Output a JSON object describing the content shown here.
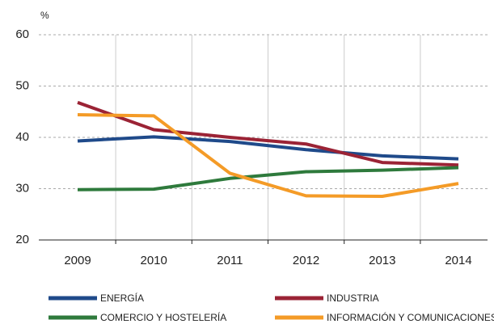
{
  "chart_data": {
    "type": "line",
    "y_label": "%",
    "categories": [
      "2009",
      "2010",
      "2011",
      "2012",
      "2013",
      "2014"
    ],
    "ylim": [
      20,
      60
    ],
    "yticks": [
      20,
      30,
      40,
      50,
      60
    ],
    "grid": true,
    "series": [
      {
        "name": "ENERGÍA",
        "color": "#1f4a8a",
        "values": [
          39.3,
          40.1,
          39.2,
          37.6,
          36.4,
          35.8
        ]
      },
      {
        "name": "INDUSTRIA",
        "color": "#9b2335",
        "values": [
          46.8,
          41.5,
          40.0,
          38.7,
          35.1,
          34.6
        ]
      },
      {
        "name": "COMERCIO Y HOSTELERÍA",
        "color": "#2e7a3c",
        "values": [
          29.8,
          29.9,
          32.0,
          33.3,
          33.6,
          34.1
        ]
      },
      {
        "name": "INFORMACIÓN Y COMUNICACIONES",
        "color": "#f49b27",
        "values": [
          44.4,
          44.2,
          33.0,
          28.6,
          28.5,
          31.0
        ]
      }
    ]
  }
}
